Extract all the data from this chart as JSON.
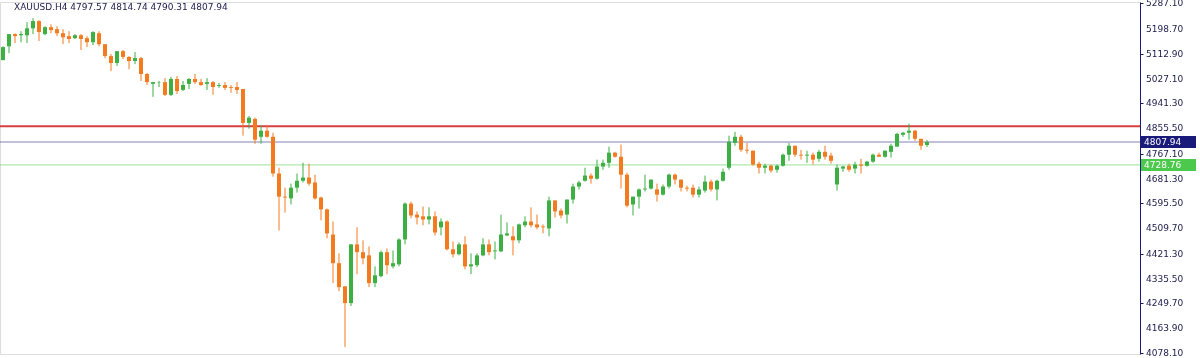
{
  "chart_data": {
    "type": "candlestick",
    "title": "XAUUSD.H4 4797.57 4814.74 4790.31 4807.94",
    "categories": [
      null,
      null,
      null,
      null,
      null,
      null,
      null,
      null,
      null,
      null,
      null,
      null,
      null,
      null,
      null,
      null,
      null,
      null,
      null,
      null,
      null,
      null,
      null,
      null,
      null,
      null,
      null,
      null,
      null,
      null,
      null,
      null,
      null,
      null,
      null,
      null,
      null,
      null,
      null,
      null,
      null,
      null,
      null,
      null,
      null,
      null,
      null,
      null,
      null,
      null,
      null,
      null,
      null,
      null,
      null,
      null,
      null,
      null,
      null,
      null,
      null,
      null,
      null,
      null,
      null,
      null,
      null,
      null,
      null,
      null,
      null,
      null,
      null,
      null,
      null,
      null,
      null,
      null,
      null,
      null,
      null,
      null,
      null,
      null,
      null,
      null,
      null,
      null,
      null,
      null,
      null,
      null,
      null,
      null,
      null,
      null,
      null,
      null,
      null,
      null,
      null,
      null,
      null,
      null,
      null,
      null,
      null,
      null,
      null,
      null,
      null,
      null,
      null,
      null,
      null,
      null,
      null,
      null,
      null,
      null,
      null,
      null,
      null,
      null,
      null,
      null,
      null,
      null,
      null,
      null,
      null,
      null,
      null,
      null,
      null,
      null,
      null,
      null,
      null,
      null,
      null,
      null,
      null,
      null,
      null,
      null,
      null,
      null,
      null,
      null,
      null,
      null,
      null,
      null,
      null,
      null,
      null,
      null,
      null,
      null,
      null,
      null,
      null,
      null,
      null,
      null,
      null,
      null,
      null,
      null,
      null,
      null,
      null,
      null,
      null,
      null,
      null,
      null,
      null,
      null,
      null,
      null,
      null,
      null,
      null,
      null,
      null,
      null,
      null,
      null
    ],
    "ohlc": [
      [
        5091,
        5139,
        5091,
        5136
      ],
      [
        5139,
        5181,
        5115,
        5181
      ],
      [
        5181,
        5184,
        5150,
        5174
      ],
      [
        5177,
        5191,
        5153,
        5181
      ],
      [
        5177,
        5222,
        5150,
        5201
      ],
      [
        5201,
        5236,
        5181,
        5226
      ],
      [
        5226,
        5229,
        5157,
        5188
      ],
      [
        5181,
        5208,
        5177,
        5205
      ],
      [
        5205,
        5215,
        5184,
        5195
      ],
      [
        5198,
        5208,
        5174,
        5184
      ],
      [
        5184,
        5198,
        5146,
        5170
      ],
      [
        5174,
        5191,
        5150,
        5164
      ],
      [
        5167,
        5181,
        5164,
        5177
      ],
      [
        5177,
        5181,
        5126,
        5164
      ],
      [
        5167,
        5174,
        5136,
        5153
      ],
      [
        5153,
        5191,
        5143,
        5188
      ],
      [
        5184,
        5191,
        5139,
        5146
      ],
      [
        5146,
        5146,
        5098,
        5105
      ],
      [
        5105,
        5112,
        5053,
        5081
      ],
      [
        5081,
        5122,
        5071,
        5122
      ],
      [
        5122,
        5126,
        5095,
        5102
      ],
      [
        5102,
        5105,
        5060,
        5088
      ],
      [
        5088,
        5119,
        5077,
        5098
      ],
      [
        5098,
        5102,
        5019,
        5043
      ],
      [
        5043,
        5046,
        5005,
        5015
      ],
      [
        5009,
        5015,
        4964,
        5015
      ],
      [
        5012,
        5019,
        4998,
        5013
      ],
      [
        5015,
        5029,
        4967,
        4971
      ],
      [
        4971,
        5033,
        4967,
        5026
      ],
      [
        5026,
        5036,
        4974,
        4984
      ],
      [
        4988,
        5019,
        4984,
        5005
      ],
      [
        5009,
        5029,
        4991,
        5026
      ],
      [
        5026,
        5043,
        5009,
        5015
      ],
      [
        5015,
        5026,
        5002,
        5005
      ],
      [
        5009,
        5029,
        4988,
        5015
      ],
      [
        5015,
        5019,
        4971,
        4998
      ],
      [
        5002,
        5012,
        4995,
        5005
      ],
      [
        5005,
        5015,
        4988,
        4995
      ],
      [
        4998,
        5005,
        4978,
        4995
      ],
      [
        4998,
        5015,
        4974,
        4988
      ],
      [
        4991,
        4991,
        4830,
        4874
      ],
      [
        4874,
        4898,
        4854,
        4892
      ],
      [
        4888,
        4892,
        4802,
        4816
      ],
      [
        4826,
        4867,
        4802,
        4847
      ],
      [
        4847,
        4864,
        4823,
        4826
      ],
      [
        4826,
        4840,
        4688,
        4699
      ],
      [
        4699,
        4719,
        4502,
        4619
      ],
      [
        4619,
        4650,
        4564,
        4616
      ],
      [
        4613,
        4664,
        4592,
        4650
      ],
      [
        4650,
        4699,
        4633,
        4674
      ],
      [
        4674,
        4736,
        4668,
        4685
      ],
      [
        4685,
        4733,
        4657,
        4664
      ],
      [
        4668,
        4695,
        4609,
        4613
      ],
      [
        4616,
        4619,
        4537,
        4575
      ],
      [
        4575,
        4578,
        4475,
        4492
      ],
      [
        4488,
        4533,
        4320,
        4389
      ],
      [
        4389,
        4423,
        4292,
        4306
      ],
      [
        4309,
        4309,
        4099,
        4251
      ],
      [
        4251,
        4454,
        4241,
        4454
      ],
      [
        4454,
        4513,
        4351,
        4427
      ],
      [
        4427,
        4468,
        4385,
        4406
      ],
      [
        4416,
        4447,
        4306,
        4320
      ],
      [
        4320,
        4378,
        4306,
        4347
      ],
      [
        4344,
        4433,
        4340,
        4427
      ],
      [
        4427,
        4440,
        4351,
        4382
      ],
      [
        4378,
        4433,
        4371,
        4389
      ],
      [
        4385,
        4475,
        4378,
        4471
      ],
      [
        4471,
        4599,
        4454,
        4595
      ],
      [
        4595,
        4602,
        4544,
        4554
      ],
      [
        4557,
        4568,
        4523,
        4547
      ],
      [
        4551,
        4585,
        4520,
        4540
      ],
      [
        4540,
        4582,
        4523,
        4551
      ],
      [
        4551,
        4568,
        4485,
        4495
      ],
      [
        4513,
        4544,
        4485,
        4533
      ],
      [
        4533,
        4537,
        4433,
        4437
      ],
      [
        4437,
        4464,
        4409,
        4420
      ],
      [
        4420,
        4461,
        4416,
        4454
      ],
      [
        4454,
        4482,
        4368,
        4378
      ],
      [
        4378,
        4423,
        4351,
        4385
      ],
      [
        4382,
        4423,
        4375,
        4416
      ],
      [
        4416,
        4475,
        4413,
        4454
      ],
      [
        4454,
        4471,
        4416,
        4427
      ],
      [
        4430,
        4464,
        4402,
        4433
      ],
      [
        4430,
        4557,
        4427,
        4488
      ],
      [
        4485,
        4530,
        4482,
        4492
      ],
      [
        4482,
        4516,
        4416,
        4468
      ],
      [
        4468,
        4526,
        4458,
        4523
      ],
      [
        4520,
        4551,
        4513,
        4533
      ],
      [
        4533,
        4582,
        4513,
        4520
      ],
      [
        4523,
        4557,
        4506,
        4513
      ],
      [
        4516,
        4523,
        4492,
        4513
      ],
      [
        4509,
        4619,
        4482,
        4606
      ],
      [
        4606,
        4606,
        4547,
        4568
      ],
      [
        4571,
        4578,
        4544,
        4554
      ],
      [
        4557,
        4609,
        4526,
        4609
      ],
      [
        4609,
        4664,
        4595,
        4654
      ],
      [
        4654,
        4674,
        4644,
        4668
      ],
      [
        4674,
        4719,
        4671,
        4692
      ],
      [
        4692,
        4699,
        4664,
        4681
      ],
      [
        4681,
        4747,
        4678,
        4723
      ],
      [
        4723,
        4747,
        4712,
        4736
      ],
      [
        4736,
        4792,
        4719,
        4771
      ],
      [
        4771,
        4774,
        4754,
        4757
      ],
      [
        4757,
        4799,
        4647,
        4695
      ],
      [
        4695,
        4702,
        4582,
        4588
      ],
      [
        4592,
        4619,
        4554,
        4619
      ],
      [
        4619,
        4647,
        4578,
        4644
      ],
      [
        4644,
        4695,
        4637,
        4647
      ],
      [
        4647,
        4678,
        4644,
        4678
      ],
      [
        4644,
        4664,
        4602,
        4626
      ],
      [
        4626,
        4661,
        4623,
        4654
      ],
      [
        4654,
        4699,
        4647,
        4695
      ],
      [
        4695,
        4699,
        4661,
        4678
      ],
      [
        4678,
        4678,
        4637,
        4650
      ],
      [
        4650,
        4657,
        4637,
        4647
      ],
      [
        4650,
        4661,
        4616,
        4626
      ],
      [
        4626,
        4654,
        4616,
        4644
      ],
      [
        4640,
        4692,
        4633,
        4671
      ],
      [
        4671,
        4678,
        4637,
        4644
      ],
      [
        4644,
        4678,
        4606,
        4674
      ],
      [
        4674,
        4716,
        4671,
        4705
      ],
      [
        4719,
        4830,
        4712,
        4809
      ],
      [
        4805,
        4843,
        4795,
        4826
      ],
      [
        4826,
        4833,
        4774,
        4781
      ],
      [
        4781,
        4805,
        4768,
        4778
      ],
      [
        4778,
        4778,
        4726,
        4730
      ],
      [
        4733,
        4740,
        4699,
        4719
      ],
      [
        4719,
        4733,
        4699,
        4726
      ],
      [
        4726,
        4730,
        4702,
        4709
      ],
      [
        4712,
        4730,
        4702,
        4726
      ],
      [
        4726,
        4768,
        4723,
        4764
      ],
      [
        4764,
        4805,
        4743,
        4795
      ],
      [
        4795,
        4795,
        4757,
        4764
      ],
      [
        4764,
        4781,
        4747,
        4761
      ],
      [
        4761,
        4778,
        4736,
        4764
      ],
      [
        4764,
        4771,
        4730,
        4747
      ],
      [
        4750,
        4781,
        4740,
        4774
      ],
      [
        4774,
        4795,
        4747,
        4757
      ],
      [
        4761,
        4771,
        4733,
        4743
      ],
      [
        4661,
        4730,
        4640,
        4719
      ],
      [
        4716,
        4726,
        4705,
        4723
      ],
      [
        4726,
        4733,
        4705,
        4712
      ],
      [
        4716,
        4740,
        4699,
        4730
      ],
      [
        4730,
        4750,
        4699,
        4726
      ],
      [
        4726,
        4743,
        4723,
        4740
      ],
      [
        4740,
        4768,
        4736,
        4764
      ],
      [
        4764,
        4771,
        4757,
        4757
      ],
      [
        4757,
        4778,
        4754,
        4778
      ],
      [
        4774,
        4802,
        4754,
        4795
      ],
      [
        4792,
        4840,
        4792,
        4836
      ],
      [
        4833,
        4843,
        4826,
        4840
      ],
      [
        4840,
        4871,
        4816,
        4847
      ],
      [
        4847,
        4850,
        4812,
        4819
      ],
      [
        4819,
        4819,
        4781,
        4795
      ],
      [
        4797.57,
        4814.74,
        4790.31,
        4807.94
      ],
      null,
      null,
      null,
      null,
      null,
      null,
      null,
      null,
      null,
      null,
      null,
      null,
      null,
      null,
      null,
      null,
      null,
      null,
      null,
      null,
      null,
      null,
      null,
      null,
      null,
      null,
      null,
      null,
      null,
      null,
      null,
      null,
      null,
      null,
      null
    ],
    "ylim": [
      4075,
      5292
    ],
    "yticks": [
      {
        "value": 5287.1,
        "label": "5287.10"
      },
      {
        "value": 5198.7,
        "label": "5198.70"
      },
      {
        "value": 5112.9,
        "label": "5112.90"
      },
      {
        "value": 5027.1,
        "label": "5027.10"
      },
      {
        "value": 4941.3,
        "label": "4941.30"
      },
      {
        "value": 4855.5,
        "label": "4855.50"
      },
      {
        "value": 4767.1,
        "label": "4767.10"
      },
      {
        "value": 4681.3,
        "label": "4681.30"
      },
      {
        "value": 4595.5,
        "label": "4595.50"
      },
      {
        "value": 4509.7,
        "label": "4509.70"
      },
      {
        "value": 4421.3,
        "label": "4421.30"
      },
      {
        "value": 4335.5,
        "label": "4335.50"
      },
      {
        "value": 4249.7,
        "label": "4249.70"
      },
      {
        "value": 4163.9,
        "label": "4163.90"
      },
      {
        "value": 4078.1,
        "label": "4078.10"
      }
    ],
    "tick_labels": "y",
    "grid": false,
    "ref_lines": [
      {
        "axis": "y",
        "value": 4862,
        "label": null,
        "color": "#d42a2a"
      },
      {
        "axis": "y",
        "value": 4807.94,
        "label": "4807.94",
        "color": "#1a1a7a"
      },
      {
        "axis": "y",
        "value": 4728.76,
        "label": "4728.76",
        "color": "#4cc84c"
      }
    ]
  }
}
